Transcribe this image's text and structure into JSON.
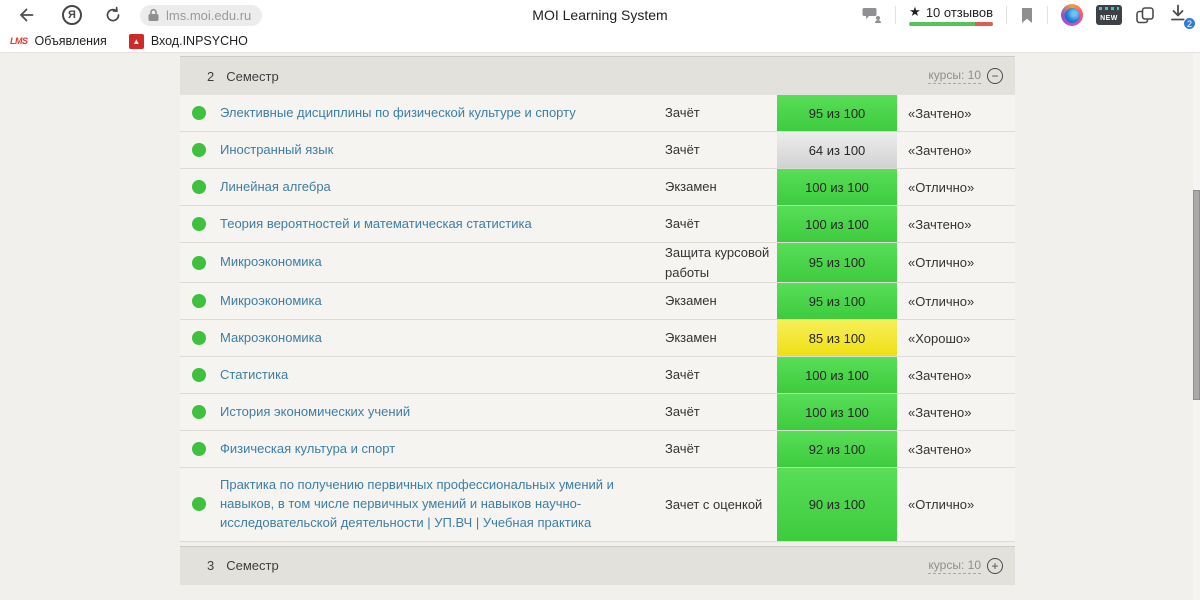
{
  "browser": {
    "url": "lms.moi.edu.ru",
    "page_title": "MOI Learning System",
    "reviews": {
      "star": "★",
      "label": "10 отзывов",
      "green_pct": 78
    },
    "download_badge": "2",
    "new_badge_label": "NEW",
    "bookmarks": [
      {
        "favicon_text": "LMS",
        "label": "Объявления"
      },
      {
        "favicon_text": "▲",
        "label": "Вход.INPSYCHO"
      }
    ]
  },
  "icons": {
    "back": "back-arrow",
    "reload": "circular-arrow",
    "lock": "padlock",
    "chat": "speech-bubble-person",
    "bookmark_flag": "ribbon-flag",
    "extension_ring": "colored-ring",
    "new_cinema": "marquee-new",
    "tabs_cards": "overlapping-cards",
    "download": "down-arrow-tray",
    "collapse": "−",
    "expand": "+"
  },
  "colors": {
    "dot_green": "#3fc13f",
    "link_blue": "#3d7ea6",
    "band_bg": "#e2e1dc",
    "row_bg": "#f5f4f0",
    "page_bg": "#f1f0ed"
  },
  "score_colors": {
    "green": {
      "top": "#58de58",
      "bottom": "#3ecb3e"
    },
    "gray": {
      "top": "#ededed",
      "bottom": "#d2d2d2"
    },
    "yellow": {
      "top": "#f7ef58",
      "bottom": "#efdf14"
    }
  },
  "semester_header": {
    "number": "2",
    "label": "Семестр",
    "courses_label": "курсы: 10"
  },
  "next_semester": {
    "number": "3",
    "label": "Семестр",
    "courses_label": "курсы: 10"
  },
  "rows": [
    {
      "course": "Элективные дисциплины по физической культуре и спорту",
      "type": "Зачёт",
      "score": "95 из 100",
      "score_color": "green",
      "grade": "«Зачтено»"
    },
    {
      "course": "Иностранный язык",
      "type": "Зачёт",
      "score": "64 из 100",
      "score_color": "gray",
      "grade": "«Зачтено»"
    },
    {
      "course": "Линейная алгебра",
      "type": "Экзамен",
      "score": "100 из 100",
      "score_color": "green",
      "grade": "«Отлично»"
    },
    {
      "course": "Теория вероятностей и математическая статистика",
      "type": "Зачёт",
      "score": "100 из 100",
      "score_color": "green",
      "grade": "«Зачтено»"
    },
    {
      "course": "Микроэкономика",
      "type": "Защита курсовой работы",
      "score": "95 из 100",
      "score_color": "green",
      "grade": "«Отлично»"
    },
    {
      "course": "Микроэкономика",
      "type": "Экзамен",
      "score": "95 из 100",
      "score_color": "green",
      "grade": "«Отлично»"
    },
    {
      "course": "Макроэкономика",
      "type": "Экзамен",
      "score": "85 из 100",
      "score_color": "yellow",
      "grade": "«Хорошо»"
    },
    {
      "course": "Статистика",
      "type": "Зачёт",
      "score": "100 из 100",
      "score_color": "green",
      "grade": "«Зачтено»"
    },
    {
      "course": "История экономических учений",
      "type": "Зачёт",
      "score": "100 из 100",
      "score_color": "green",
      "grade": "«Зачтено»"
    },
    {
      "course": "Физическая культура и спорт",
      "type": "Зачёт",
      "score": "92 из 100",
      "score_color": "green",
      "grade": "«Зачтено»"
    },
    {
      "course": "Практика по получению первичных профессиональных умений и навыков, в том числе первичных умений и навыков научно-исследовательской деятельности | УП.ВЧ | Учебная практика",
      "type": "Зачет с оценкой",
      "score": "90 из 100",
      "score_color": "green",
      "grade": "«Отлично»"
    }
  ]
}
